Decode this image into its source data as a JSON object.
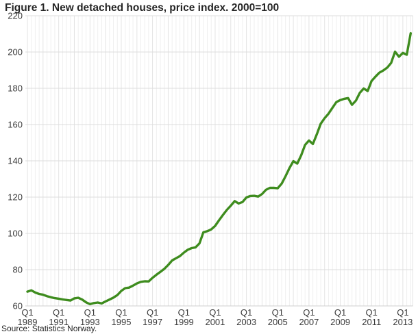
{
  "title": "Figure 1. New detached houses, price index. 2000=100",
  "source": "Source: Statistics Norway.",
  "colors": {
    "line": "#3e8c1e",
    "grid_minor": "#efefef",
    "grid_year": "#e3e3e3",
    "grid_horizontal": "#dcdcdc",
    "axis_baseline": "#cfcfcf",
    "tick_text": "#3a3a3a"
  },
  "chart_data": {
    "type": "line",
    "title": "Figure 1. New detached houses, price index. 2000=100",
    "xlabel": "",
    "ylabel": "",
    "ylim": [
      60,
      220
    ],
    "y_ticks": [
      60,
      80,
      100,
      120,
      140,
      160,
      180,
      200,
      220
    ],
    "grid": true,
    "legend_position": "none",
    "x_unit": "quarter",
    "x_start": "Q1 1989",
    "x_end": "Q3 2013",
    "x_tick_every_quarters": 8,
    "x_tick_labels": [
      {
        "quarter": "Q1",
        "year": "1989"
      },
      {
        "quarter": "Q1",
        "year": "1991"
      },
      {
        "quarter": "Q1",
        "year": "1993"
      },
      {
        "quarter": "Q1",
        "year": "1995"
      },
      {
        "quarter": "Q1",
        "year": "1997"
      },
      {
        "quarter": "Q1",
        "year": "1999"
      },
      {
        "quarter": "Q1",
        "year": "2001"
      },
      {
        "quarter": "Q1",
        "year": "2003"
      },
      {
        "quarter": "Q1",
        "year": "2005"
      },
      {
        "quarter": "Q1",
        "year": "2007"
      },
      {
        "quarter": "Q1",
        "year": "2009"
      },
      {
        "quarter": "Q1",
        "year": "2011"
      },
      {
        "quarter": "Q1",
        "year": "2013"
      }
    ],
    "series": [
      {
        "name": "New detached houses, price index (2000=100)",
        "values": [
          67.9,
          68.6,
          67.4,
          66.6,
          66.2,
          65.4,
          64.8,
          64.3,
          64.0,
          63.6,
          63.3,
          63.0,
          64.2,
          64.5,
          63.5,
          62.0,
          61.0,
          61.6,
          61.9,
          61.4,
          62.5,
          63.5,
          64.6,
          66.0,
          68.3,
          69.8,
          70.1,
          71.2,
          72.4,
          73.3,
          73.6,
          73.5,
          75.5,
          77.2,
          78.8,
          80.4,
          82.6,
          85.1,
          86.3,
          87.5,
          89.4,
          91.0,
          91.9,
          92.3,
          94.5,
          100.6,
          101.2,
          102.2,
          104.1,
          107.2,
          110.2,
          113.0,
          115.3,
          117.8,
          116.5,
          117.3,
          119.8,
          120.6,
          120.7,
          120.3,
          121.7,
          124.0,
          125.1,
          125.1,
          124.9,
          127.4,
          131.5,
          136.0,
          139.8,
          138.5,
          143.0,
          148.8,
          151.2,
          149.3,
          154.6,
          160.4,
          163.5,
          166.0,
          169.3,
          172.4,
          173.5,
          174.2,
          174.6,
          170.9,
          173.2,
          177.5,
          179.9,
          178.5,
          184.0,
          186.4,
          188.6,
          189.8,
          191.4,
          194.0,
          200.2,
          197.4,
          199.5,
          198.5,
          210.3
        ]
      }
    ]
  }
}
